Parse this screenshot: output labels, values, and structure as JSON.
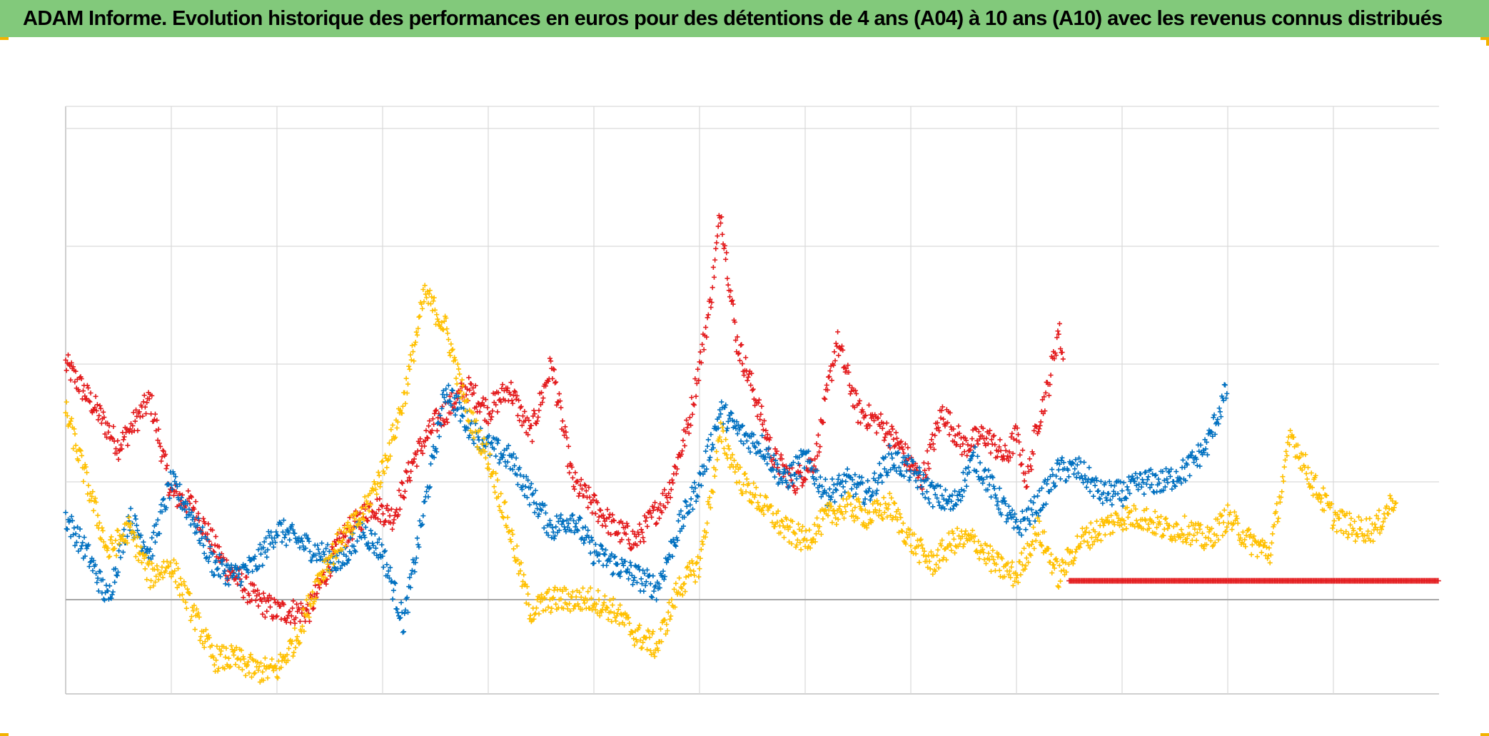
{
  "title": "ADAM Informe. Evolution historique des performances en euros pour des détentions de 4 ans (A04) à 10 ans (A10) avec les revenus connus distribués",
  "colors": {
    "header_bg": "#82c97b",
    "grid": "#d9d9d9",
    "axis": "#bfbfbf",
    "corner": "#f2b300"
  },
  "chart_data": {
    "type": "scatter",
    "marker": "plus",
    "title": "ADAM Informe. Evolution historique des performances en euros pour des détentions de 4 ans (A04) à 10 ans (A10) avec les revenus connus distribués",
    "xlabel": "",
    "ylabel": "",
    "tick_labels_visible": false,
    "grid": true,
    "xlim": [
      0,
      13
    ],
    "ylim": [
      -0.8,
      4.2
    ],
    "x_gridlines": [
      1,
      2,
      3,
      4,
      5,
      6,
      7,
      8,
      9,
      10,
      11,
      12
    ],
    "y_gridlines": [
      0,
      1,
      2,
      3,
      4
    ],
    "series": [
      {
        "name": "red",
        "color": "#e31a1c",
        "x": [
          0,
          0.3,
          0.5,
          0.8,
          1.0,
          1.2,
          1.5,
          1.8,
          2.0,
          2.3,
          2.6,
          2.9,
          3.1,
          3.3,
          3.5,
          3.8,
          4.0,
          4.2,
          4.4,
          4.6,
          4.8,
          5.0,
          5.2,
          5.4,
          5.7,
          5.9,
          6.0,
          6.1,
          6.2,
          6.35,
          6.5,
          6.7,
          6.9,
          7.1,
          7.3,
          7.5,
          7.7,
          7.9,
          8.1,
          8.3,
          8.5,
          8.7,
          8.9,
          9.0,
          9.1,
          9.2,
          9.3,
          9.4,
          9.45
        ],
        "y": [
          2.0,
          1.6,
          1.3,
          1.7,
          0.9,
          0.8,
          0.3,
          0.0,
          -0.1,
          -0.1,
          0.5,
          0.8,
          0.7,
          1.2,
          1.5,
          1.8,
          1.6,
          1.8,
          1.4,
          2.0,
          1.0,
          0.8,
          0.6,
          0.5,
          0.9,
          1.5,
          2.0,
          2.5,
          3.3,
          2.2,
          1.8,
          1.2,
          1.0,
          1.2,
          2.2,
          1.6,
          1.5,
          1.3,
          1.0,
          1.6,
          1.3,
          1.4,
          1.2,
          1.4,
          1.0,
          1.5,
          1.8,
          2.3,
          2.0
        ]
      },
      {
        "name": "red-flat",
        "color": "#e31a1c",
        "x_start": 9.5,
        "x_end": 13.0,
        "y": 0.16
      },
      {
        "name": "blue",
        "color": "#0070c0",
        "x": [
          0,
          0.2,
          0.4,
          0.6,
          0.8,
          1.0,
          1.2,
          1.4,
          1.6,
          1.8,
          2.0,
          2.2,
          2.4,
          2.6,
          2.8,
          3.0,
          3.2,
          3.4,
          3.6,
          3.8,
          4.0,
          4.2,
          4.4,
          4.6,
          4.8,
          5.0,
          5.2,
          5.4,
          5.6,
          5.8,
          6.0,
          6.1,
          6.2,
          6.4,
          6.6,
          6.8,
          7.0,
          7.2,
          7.4,
          7.6,
          7.8,
          8.0,
          8.2,
          8.4,
          8.6,
          8.8,
          9.0,
          9.2,
          9.4,
          9.6,
          9.8,
          10.0,
          10.2,
          10.4,
          10.6,
          10.8,
          11.0
        ],
        "y": [
          0.7,
          0.4,
          0.0,
          0.7,
          0.4,
          1.0,
          0.7,
          0.3,
          0.2,
          0.3,
          0.6,
          0.5,
          0.4,
          0.3,
          0.6,
          0.4,
          -0.2,
          0.8,
          1.8,
          1.5,
          1.3,
          1.2,
          0.9,
          0.6,
          0.7,
          0.4,
          0.3,
          0.2,
          0.1,
          0.6,
          1.0,
          1.3,
          1.6,
          1.4,
          1.3,
          1.0,
          1.2,
          0.9,
          1.0,
          0.9,
          1.2,
          1.1,
          0.9,
          0.8,
          1.2,
          0.9,
          0.6,
          0.8,
          1.1,
          1.1,
          0.9,
          0.9,
          1.0,
          1.0,
          1.1,
          1.3,
          1.8
        ]
      },
      {
        "name": "yellow",
        "color": "#ffc000",
        "x": [
          0,
          0.2,
          0.4,
          0.6,
          0.8,
          1.0,
          1.2,
          1.4,
          1.6,
          1.8,
          2.0,
          2.2,
          2.4,
          2.6,
          2.8,
          3.0,
          3.2,
          3.4,
          3.6,
          3.8,
          4.0,
          4.2,
          4.4,
          4.6,
          4.8,
          5.0,
          5.2,
          5.4,
          5.6,
          5.8,
          6.0,
          6.2,
          6.4,
          6.6,
          6.8,
          7.0,
          7.2,
          7.4,
          7.6,
          7.8,
          8.0,
          8.2,
          8.4,
          8.6,
          8.8,
          9.0,
          9.2,
          9.4,
          9.6,
          9.8,
          10.0,
          10.2,
          10.4,
          10.6,
          10.8,
          11.0,
          11.2,
          11.4,
          11.6,
          11.8,
          12.0,
          12.2,
          12.4,
          12.6
        ],
        "y": [
          1.6,
          1.0,
          0.4,
          0.6,
          0.2,
          0.3,
          -0.1,
          -0.5,
          -0.5,
          -0.6,
          -0.6,
          -0.3,
          0.2,
          0.5,
          0.7,
          1.1,
          1.7,
          2.6,
          2.3,
          1.6,
          1.2,
          0.6,
          -0.1,
          0.0,
          0.0,
          0.0,
          -0.1,
          -0.3,
          -0.4,
          0.1,
          0.3,
          1.4,
          1.0,
          0.8,
          0.6,
          0.5,
          0.7,
          0.8,
          0.7,
          0.8,
          0.5,
          0.3,
          0.5,
          0.5,
          0.3,
          0.2,
          0.6,
          0.2,
          0.5,
          0.6,
          0.7,
          0.7,
          0.6,
          0.6,
          0.5,
          0.7,
          0.5,
          0.4,
          1.4,
          1.0,
          0.7,
          0.6,
          0.6,
          0.9
        ]
      }
    ]
  }
}
